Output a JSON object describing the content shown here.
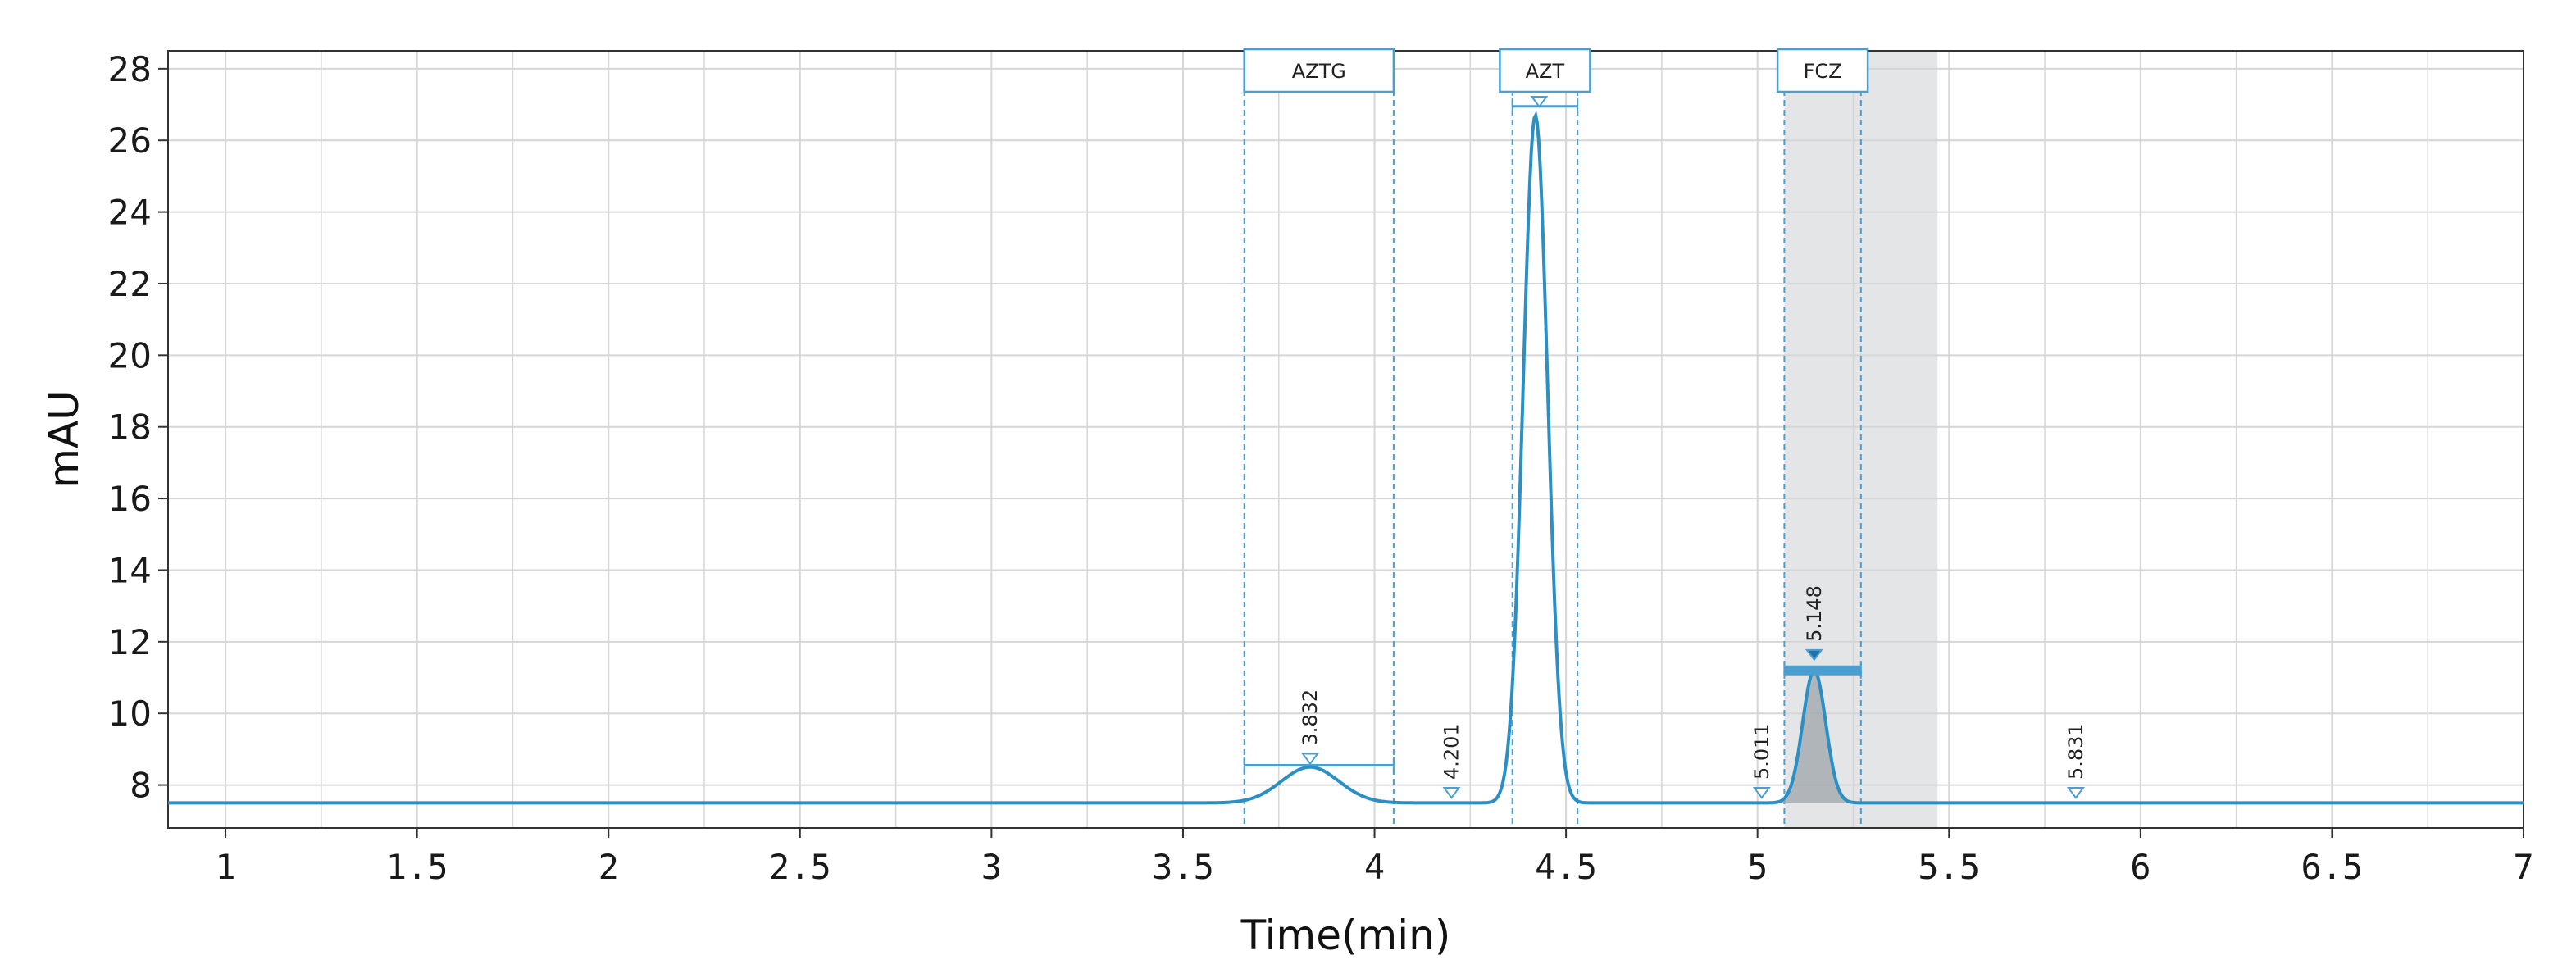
{
  "chart_data": {
    "type": "line",
    "title": "",
    "xlabel": "Time(min)",
    "ylabel": "mAU",
    "xlim": [
      0.85,
      7.0
    ],
    "ylim": [
      6.8,
      28.5
    ],
    "x_ticks": [
      1,
      1.5,
      2,
      2.5,
      3,
      3.5,
      4,
      4.5,
      5,
      5.5,
      6,
      6.5,
      7
    ],
    "x_tick_labels": [
      "1",
      "1.5",
      "2",
      "2.5",
      "3",
      "3.5",
      "4",
      "4.5",
      "5",
      "5.5",
      "6",
      "6.5",
      "7"
    ],
    "y_ticks": [
      8,
      10,
      12,
      14,
      16,
      18,
      20,
      22,
      24,
      26,
      28
    ],
    "y_tick_labels": [
      "8",
      "10",
      "12",
      "14",
      "16",
      "18",
      "20",
      "22",
      "24",
      "26",
      "28"
    ],
    "grid": true,
    "baseline": 7.5,
    "series": [
      {
        "name": "chromatogram",
        "color": "#2a8fc4",
        "peaks": [
          {
            "center": 3.832,
            "height": 8.5,
            "width": 0.075
          },
          {
            "center": 4.42,
            "height": 26.7,
            "width": 0.032
          },
          {
            "center": 5.148,
            "height": 11.2,
            "width": 0.03
          }
        ]
      }
    ],
    "peak_labels": [
      {
        "x": 3.832,
        "y": 8.55,
        "text": "3.832"
      },
      {
        "x": 4.201,
        "y": 7.6,
        "text": "4.201"
      },
      {
        "x": 5.011,
        "y": 7.6,
        "text": "5.011"
      },
      {
        "x": 5.148,
        "y": 11.45,
        "text": "5.148"
      },
      {
        "x": 5.831,
        "y": 7.6,
        "text": "5.831"
      }
    ],
    "components": [
      {
        "name": "AZTG",
        "start": 3.66,
        "end": 4.05
      },
      {
        "name": "AZT",
        "start": 4.36,
        "end": 4.53
      },
      {
        "name": "FCZ",
        "start": 5.07,
        "end": 5.27
      }
    ],
    "highlight_region": [
      5.07,
      5.47
    ],
    "colors": {
      "line": "#2a8fc4",
      "marker": "#4a9fd0",
      "grid": "#d6d6d6",
      "shade": "#e3e5e7"
    }
  }
}
